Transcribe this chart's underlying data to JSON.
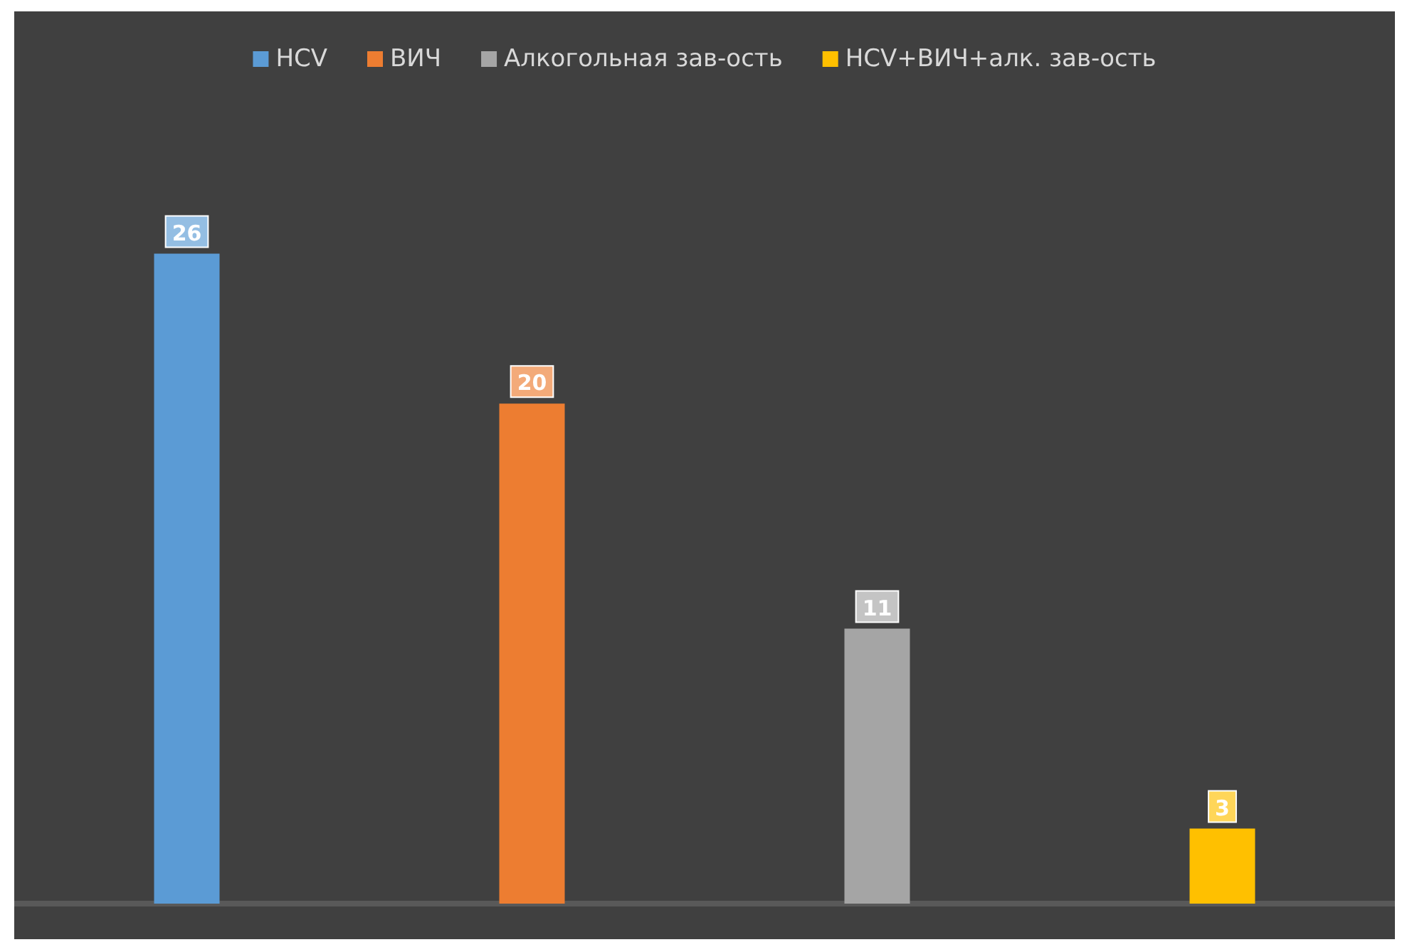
{
  "chart_data": {
    "type": "bar",
    "categories": [
      null,
      null,
      null,
      null
    ],
    "stacked": true,
    "series": [
      {
        "name": "HCV",
        "color": "#5b9bd5",
        "values": [
          26,
          null,
          null,
          null
        ]
      },
      {
        "name": "ВИЧ",
        "color": "#ed7d31",
        "values": [
          null,
          20,
          null,
          null
        ]
      },
      {
        "name": "Алкогольная зав-ость",
        "color": "#a5a5a5",
        "values": [
          null,
          null,
          11,
          null
        ]
      },
      {
        "name": "HCV+ВИЧ+алк. зав-ость",
        "color": "#ffc000",
        "values": [
          null,
          null,
          null,
          3
        ]
      }
    ],
    "data_labels": true,
    "legend": "top"
  }
}
